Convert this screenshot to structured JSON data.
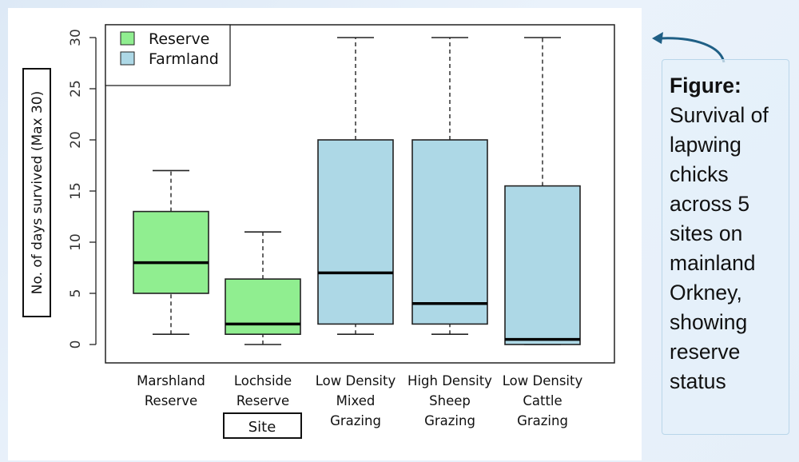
{
  "chart_data": {
    "type": "boxplot",
    "ylabel": "No. of days survived (Max 30)",
    "xlabel": "Site",
    "ylim": [
      0,
      30
    ],
    "yticks": [
      0,
      5,
      10,
      15,
      20,
      25,
      30
    ],
    "legend": {
      "position": "top-left",
      "entries": [
        {
          "label": "Reserve",
          "color": "#90ee90"
        },
        {
          "label": "Farmland",
          "color": "#add8e6"
        }
      ]
    },
    "categories": [
      {
        "label": [
          "Marshland",
          "Reserve"
        ],
        "group": "Reserve",
        "min": 1,
        "q1": 5,
        "median": 8,
        "q3": 13,
        "max": 17
      },
      {
        "label": [
          "Lochside",
          "Reserve"
        ],
        "group": "Reserve",
        "min": 0,
        "q1": 1,
        "median": 2,
        "q3": 6.4,
        "max": 11
      },
      {
        "label": [
          "Low Density",
          "Mixed",
          "Grazing"
        ],
        "group": "Farmland",
        "min": 1,
        "q1": 2,
        "median": 7,
        "q3": 20,
        "max": 30
      },
      {
        "label": [
          "High Density",
          "Sheep",
          "Grazing"
        ],
        "group": "Farmland",
        "min": 1,
        "q1": 2,
        "median": 4,
        "q3": 20,
        "max": 30
      },
      {
        "label": [
          "Low Density",
          "Cattle",
          "Grazing"
        ],
        "group": "Farmland",
        "min": 0,
        "q1": 0,
        "median": 0.5,
        "q3": 15.5,
        "max": 30
      }
    ]
  },
  "caption": {
    "label": "Figure:",
    "text": "Survival of lapwing chicks across 5 sites on mainland Orkney, showing reserve status"
  },
  "colors": {
    "reserve": "#90ee90",
    "farmland": "#add8e6",
    "arrow": "#1f5f85"
  }
}
